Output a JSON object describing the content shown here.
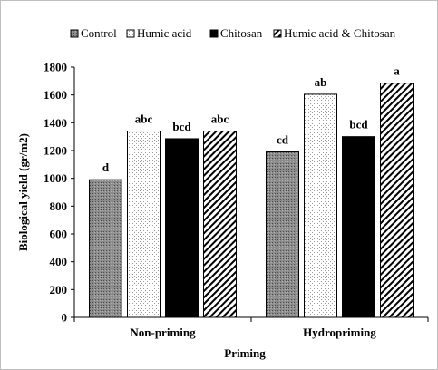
{
  "chart_data": {
    "type": "bar",
    "title": "",
    "xlabel": "Priming",
    "ylabel": "Biological yield (gr/m2)",
    "categories": [
      "Non-priming",
      "Hydropriming"
    ],
    "ylim": [
      0,
      1800
    ],
    "yticks": [
      0,
      200,
      400,
      600,
      800,
      1000,
      1200,
      1400,
      1600,
      1800
    ],
    "grid": false,
    "legend_position": "top",
    "series": [
      {
        "name": "Control",
        "values": [
          990,
          1190
        ],
        "labels": [
          "d",
          "cd"
        ],
        "pattern": "dense-gray",
        "color": "#7f7f7f"
      },
      {
        "name": "Humic acid",
        "values": [
          1340,
          1605
        ],
        "labels": [
          "abc",
          "ab"
        ],
        "pattern": "dots",
        "color": "#ffffff"
      },
      {
        "name": "Chitosan",
        "values": [
          1285,
          1300
        ],
        "labels": [
          "bcd",
          "bcd"
        ],
        "pattern": "solid",
        "color": "#000000"
      },
      {
        "name": "Humic acid & Chitosan",
        "values": [
          1340,
          1685
        ],
        "labels": [
          "abc",
          "a"
        ],
        "pattern": "diagonal",
        "color": "#000000"
      }
    ]
  }
}
